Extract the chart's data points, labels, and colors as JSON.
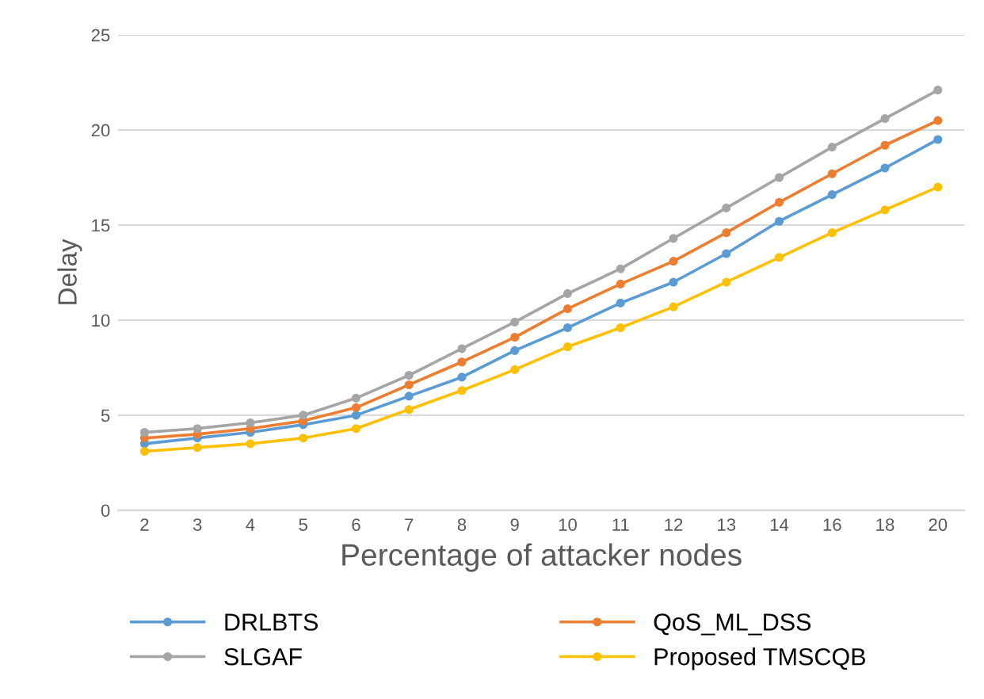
{
  "chart_data": {
    "type": "line",
    "xlabel": "Percentage of attacker nodes",
    "ylabel": "Delay",
    "categories": [
      "2",
      "3",
      "4",
      "5",
      "6",
      "7",
      "8",
      "9",
      "10",
      "11",
      "12",
      "13",
      "14",
      "16",
      "18",
      "20"
    ],
    "series": [
      {
        "name": "DRLBTS",
        "color": "#5b9bd5",
        "values": [
          3.5,
          3.8,
          4.1,
          4.5,
          5.0,
          6.0,
          7.0,
          8.4,
          9.6,
          10.9,
          12.0,
          13.5,
          15.2,
          16.6,
          18.0,
          19.5
        ]
      },
      {
        "name": "QoS_ML_DSS",
        "color": "#ed7d31",
        "values": [
          3.8,
          4.0,
          4.3,
          4.7,
          5.4,
          6.6,
          7.8,
          9.1,
          10.6,
          11.9,
          13.1,
          14.6,
          16.2,
          17.7,
          19.2,
          20.5
        ]
      },
      {
        "name": "SLGAF",
        "color": "#a5a5a5",
        "values": [
          4.1,
          4.3,
          4.6,
          5.0,
          5.9,
          7.1,
          8.5,
          9.9,
          11.4,
          12.7,
          14.3,
          15.9,
          17.5,
          19.1,
          20.6,
          22.1
        ]
      },
      {
        "name": "Proposed TMSCQB",
        "color": "#ffc000",
        "values": [
          3.1,
          3.3,
          3.5,
          3.8,
          4.3,
          5.3,
          6.3,
          7.4,
          8.6,
          9.6,
          10.7,
          12.0,
          13.3,
          14.6,
          15.8,
          17.0
        ]
      }
    ],
    "ylim": [
      0,
      25
    ],
    "yticks": [
      0,
      5,
      10,
      15,
      20,
      25
    ],
    "grid": "y",
    "legend": "bottom",
    "marker": "circle",
    "line_style": "solid"
  }
}
